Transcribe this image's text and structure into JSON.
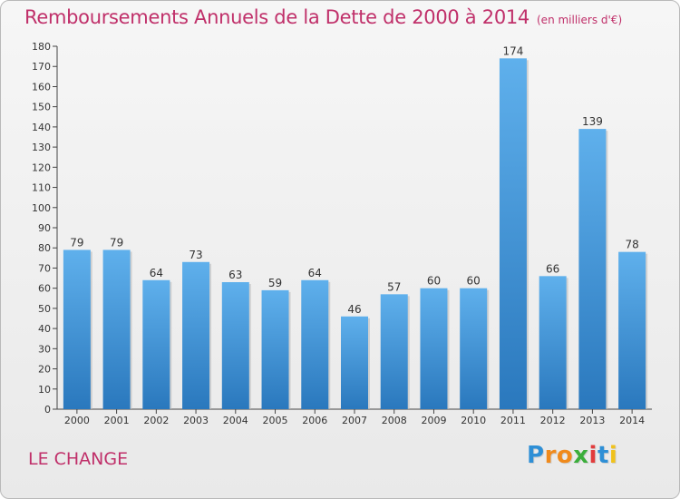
{
  "chart_data": {
    "type": "bar",
    "title": "Remboursements Annuels de la Dette de 2000 à 2014",
    "subtitle": "(en milliers d'€)",
    "categories": [
      "2000",
      "2001",
      "2002",
      "2003",
      "2004",
      "2005",
      "2006",
      "2007",
      "2008",
      "2009",
      "2010",
      "2011",
      "2012",
      "2013",
      "2014"
    ],
    "values": [
      79,
      79,
      64,
      73,
      63,
      59,
      64,
      46,
      57,
      60,
      60,
      174,
      66,
      139,
      78
    ],
    "ylim": [
      0,
      180
    ],
    "ytick_step": 10,
    "xlabel": "",
    "ylabel": "",
    "grid": false,
    "bar_color": "#4a9de0"
  },
  "footer": {
    "commune": "LE CHANGE",
    "logo_letters": [
      {
        "ch": "P",
        "color": "#2e8fd6"
      },
      {
        "ch": "r",
        "color": "#f08a1c"
      },
      {
        "ch": "o",
        "color": "#f08a1c"
      },
      {
        "ch": "x",
        "color": "#3bae3b"
      },
      {
        "ch": "i",
        "color": "#e23c3c"
      },
      {
        "ch": "t",
        "color": "#2e8fd6"
      },
      {
        "ch": "i",
        "color": "#f0c21c"
      }
    ]
  }
}
